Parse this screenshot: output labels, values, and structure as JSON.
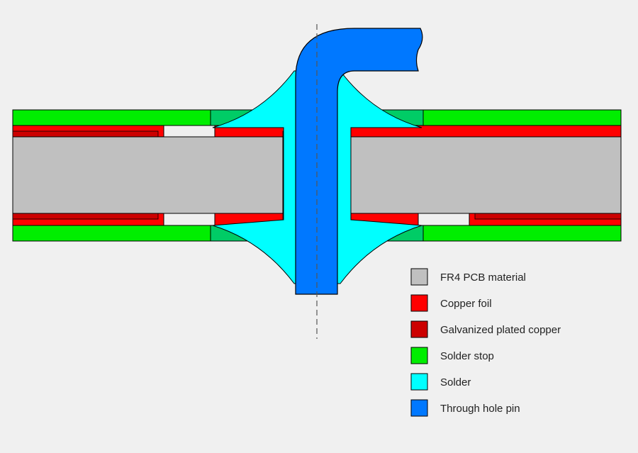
{
  "colors": {
    "fr4": "#c0c0c0",
    "copper_foil": "#ff0000",
    "galvanized_copper": "#cc0000",
    "solder_stop": "#00ee00",
    "solder_stop_dark": "#00cc66",
    "solder": "#00ffff",
    "pin": "#0078ff",
    "background": "#f0f0f0"
  },
  "legend": {
    "items": [
      {
        "label": "FR4 PCB material",
        "color": "#c0c0c0"
      },
      {
        "label": "Copper foil",
        "color": "#ff0000"
      },
      {
        "label": "Galvanized plated copper",
        "color": "#cc0000"
      },
      {
        "label": "Solder stop",
        "color": "#00ee00"
      },
      {
        "label": "Solder",
        "color": "#00ffff"
      },
      {
        "label": "Through hole pin",
        "color": "#0078ff"
      }
    ]
  }
}
